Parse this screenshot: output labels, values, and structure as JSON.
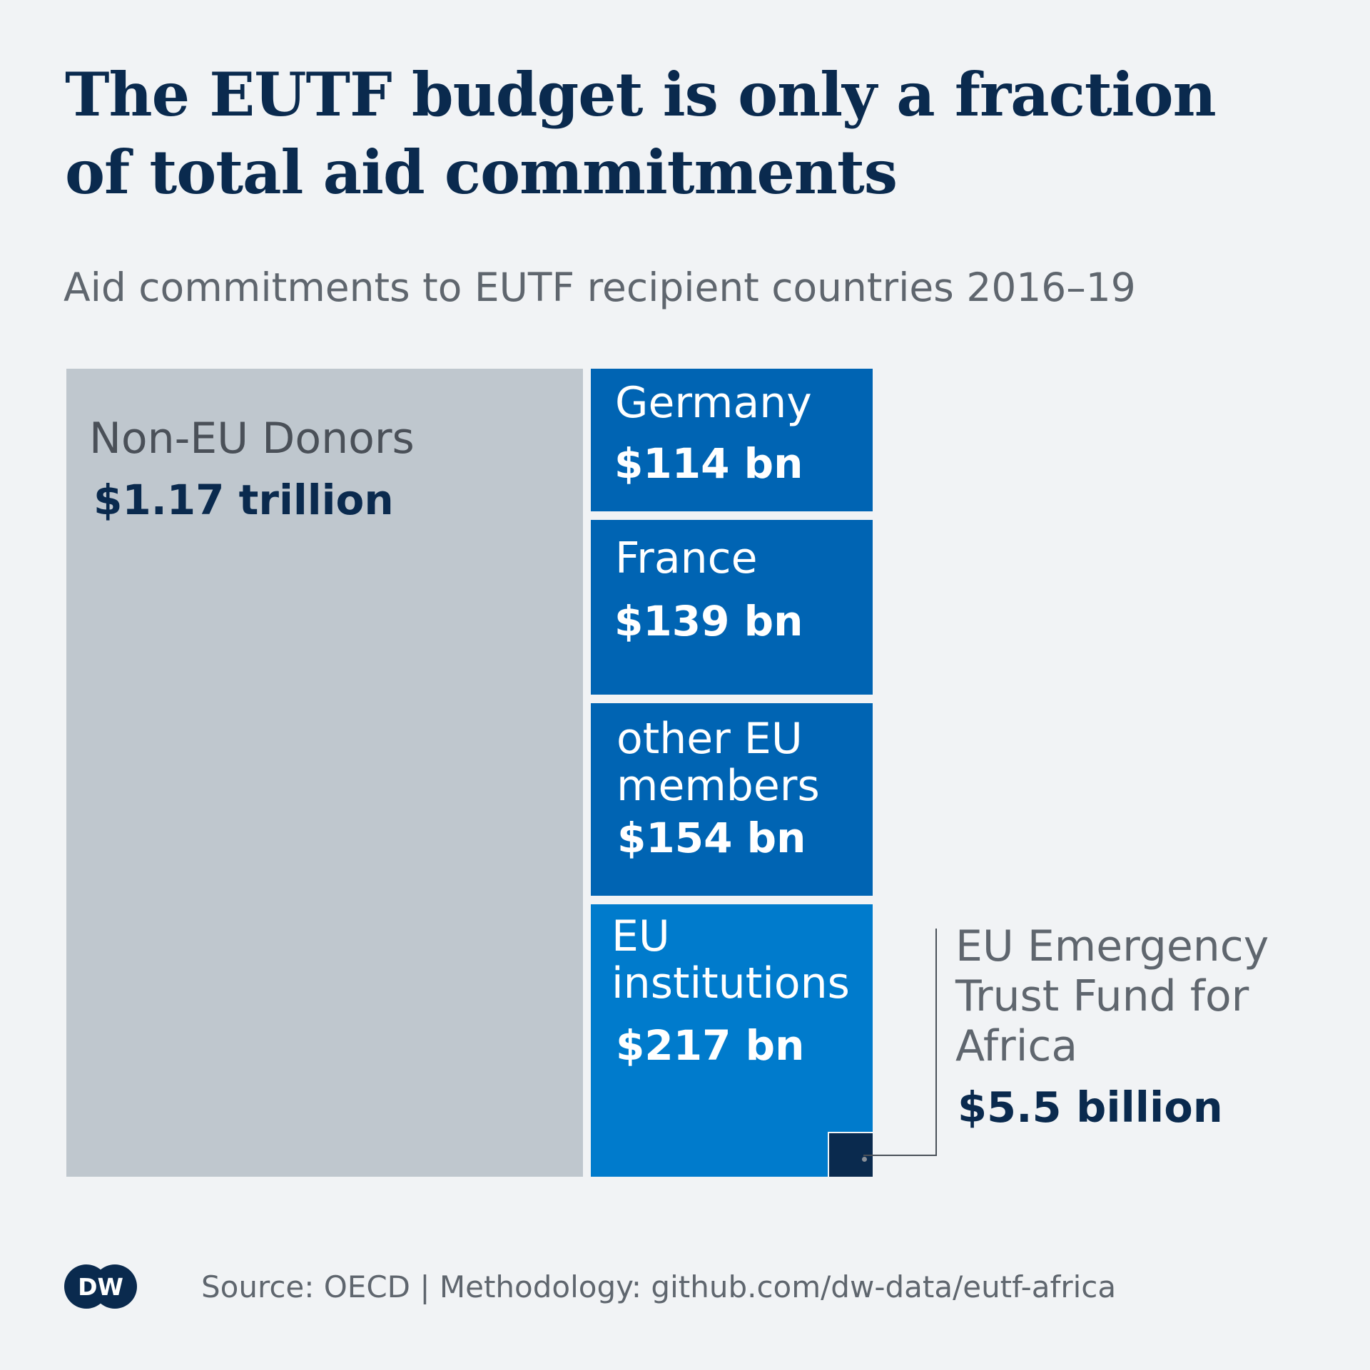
{
  "title": "The EUTF budget is only a fraction of total aid commitments",
  "subtitle": "Aid commitments to EUTF recipient countries 2016–19",
  "colors": {
    "background": "#f1f3f5",
    "non_eu": "#bfc7ce",
    "eu_member": "#0064b3",
    "eu_institutions": "#007bcc",
    "eutf": "#0a2a4e",
    "title": "#0a2a4e",
    "muted_text": "#5f666e"
  },
  "chart_data": {
    "type": "treemap",
    "title": "The EUTF budget is only a fraction of total aid commitments",
    "subtitle": "Aid commitments to EUTF recipient countries 2016–19",
    "unit": "USD",
    "items": [
      {
        "id": "non-eu",
        "label": "Non-EU Donors",
        "value_label": "$1.17 trillion",
        "value": 1170
      },
      {
        "id": "germany",
        "label": "Germany",
        "value_label": "$114 bn",
        "value": 114
      },
      {
        "id": "france",
        "label": "France",
        "value_label": "$139 bn",
        "value": 139
      },
      {
        "id": "other-eu",
        "label": "other EU members",
        "value_label": "$154 bn",
        "value": 154
      },
      {
        "id": "eu-institutions",
        "label": "EU institutions",
        "value_label": "$217 bn",
        "value": 217
      }
    ],
    "callout": {
      "label": "EU Emergency Trust Fund for Africa",
      "value_label": "$5.5 billion",
      "value": 5.5,
      "parent": "eu-institutions"
    }
  },
  "footer": {
    "logo": "DW",
    "source": "Source: OECD | Methodology: github.com/dw-data/eutf-africa"
  }
}
